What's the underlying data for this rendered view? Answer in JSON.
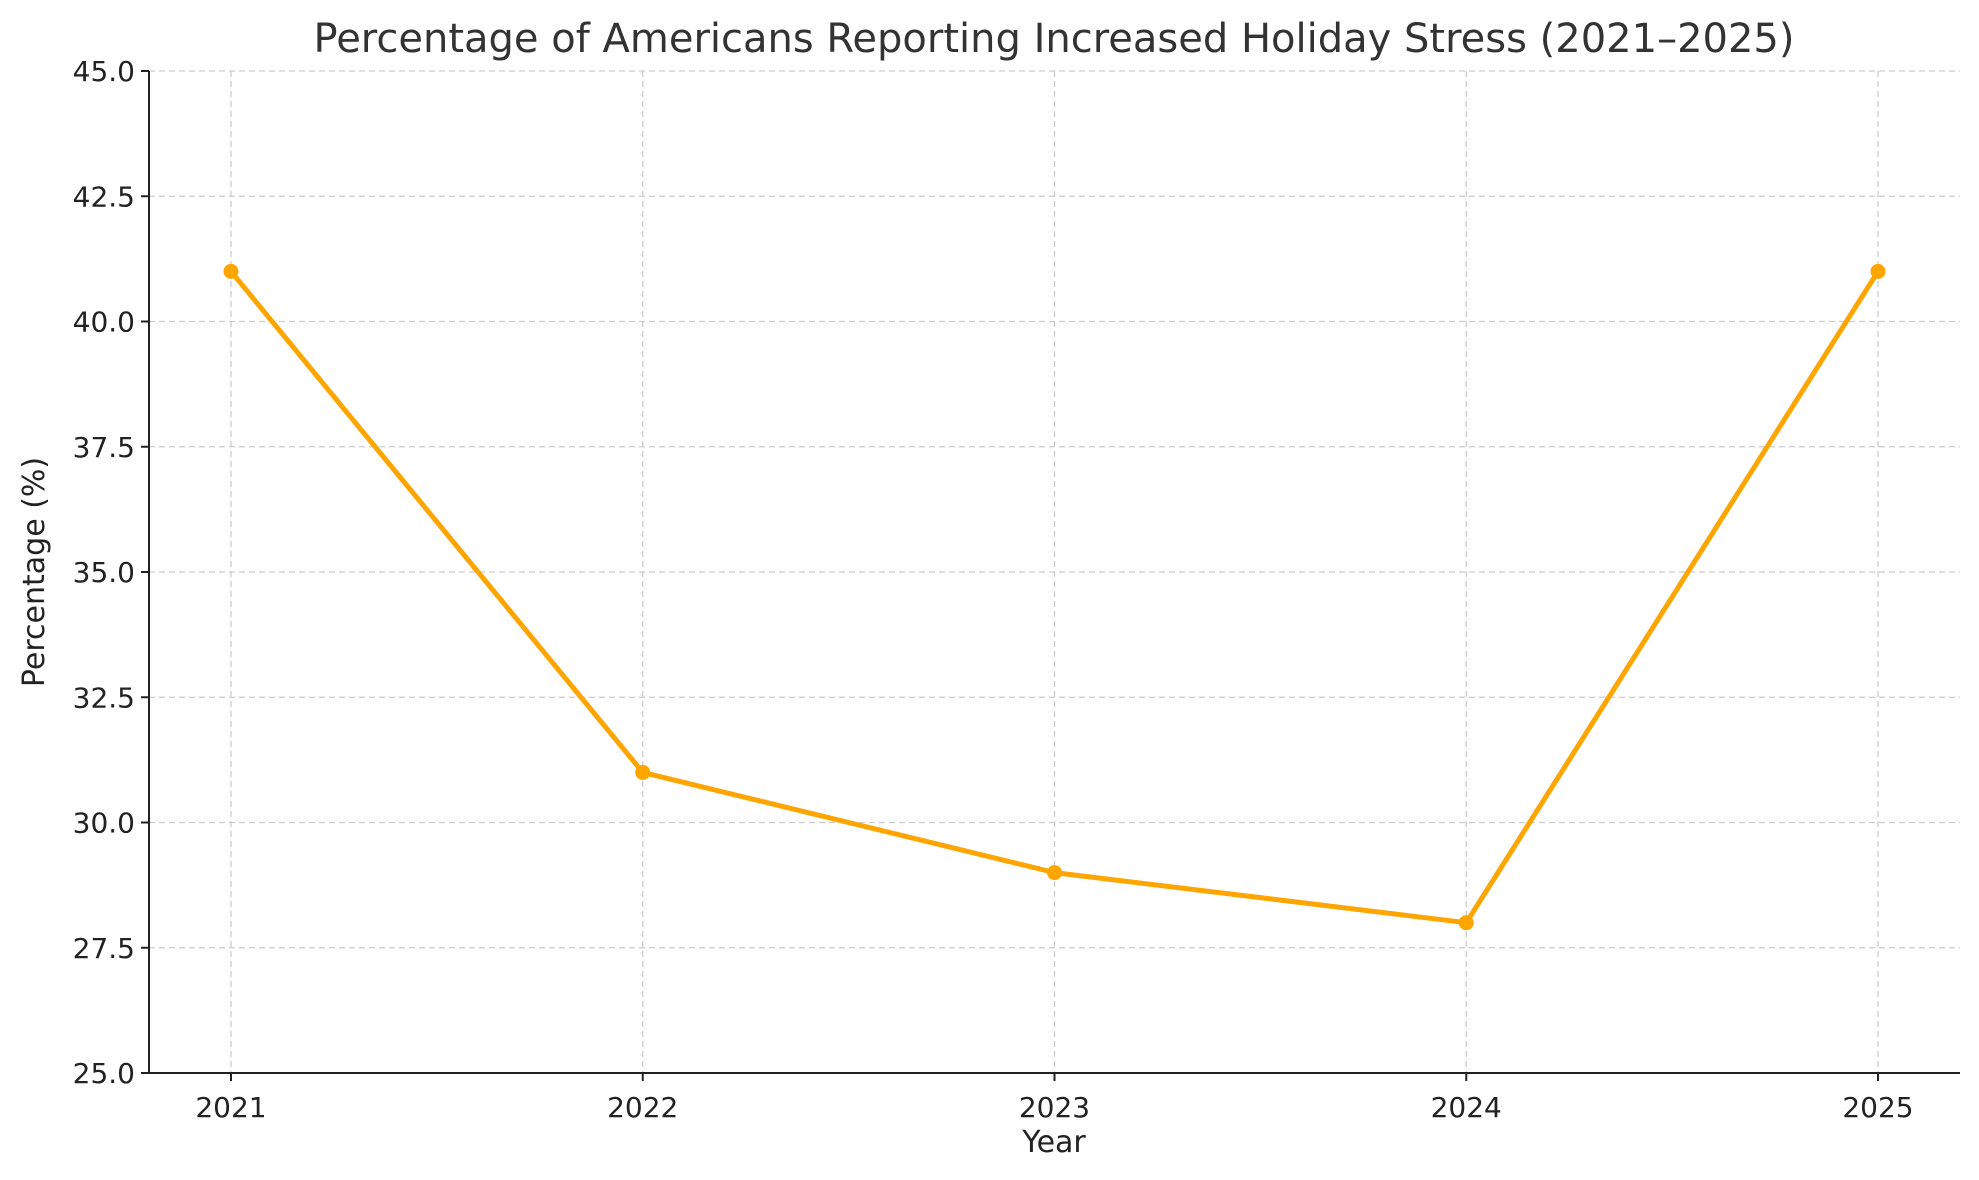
{
  "chart_data": {
    "type": "line",
    "title": "Percentage of Americans Reporting Increased Holiday Stress (2021–2025)",
    "xlabel": "Year",
    "ylabel": "Percentage (%)",
    "categories": [
      "2021",
      "2022",
      "2023",
      "2024",
      "2025"
    ],
    "values": [
      41,
      31,
      29,
      28,
      41
    ],
    "ylim": [
      25,
      45
    ],
    "yticks": [
      "25.0",
      "27.5",
      "30.0",
      "32.5",
      "35.0",
      "37.5",
      "40.0",
      "42.5",
      "45.0"
    ],
    "grid": true,
    "marker": "circle",
    "color": "#FFA500"
  }
}
